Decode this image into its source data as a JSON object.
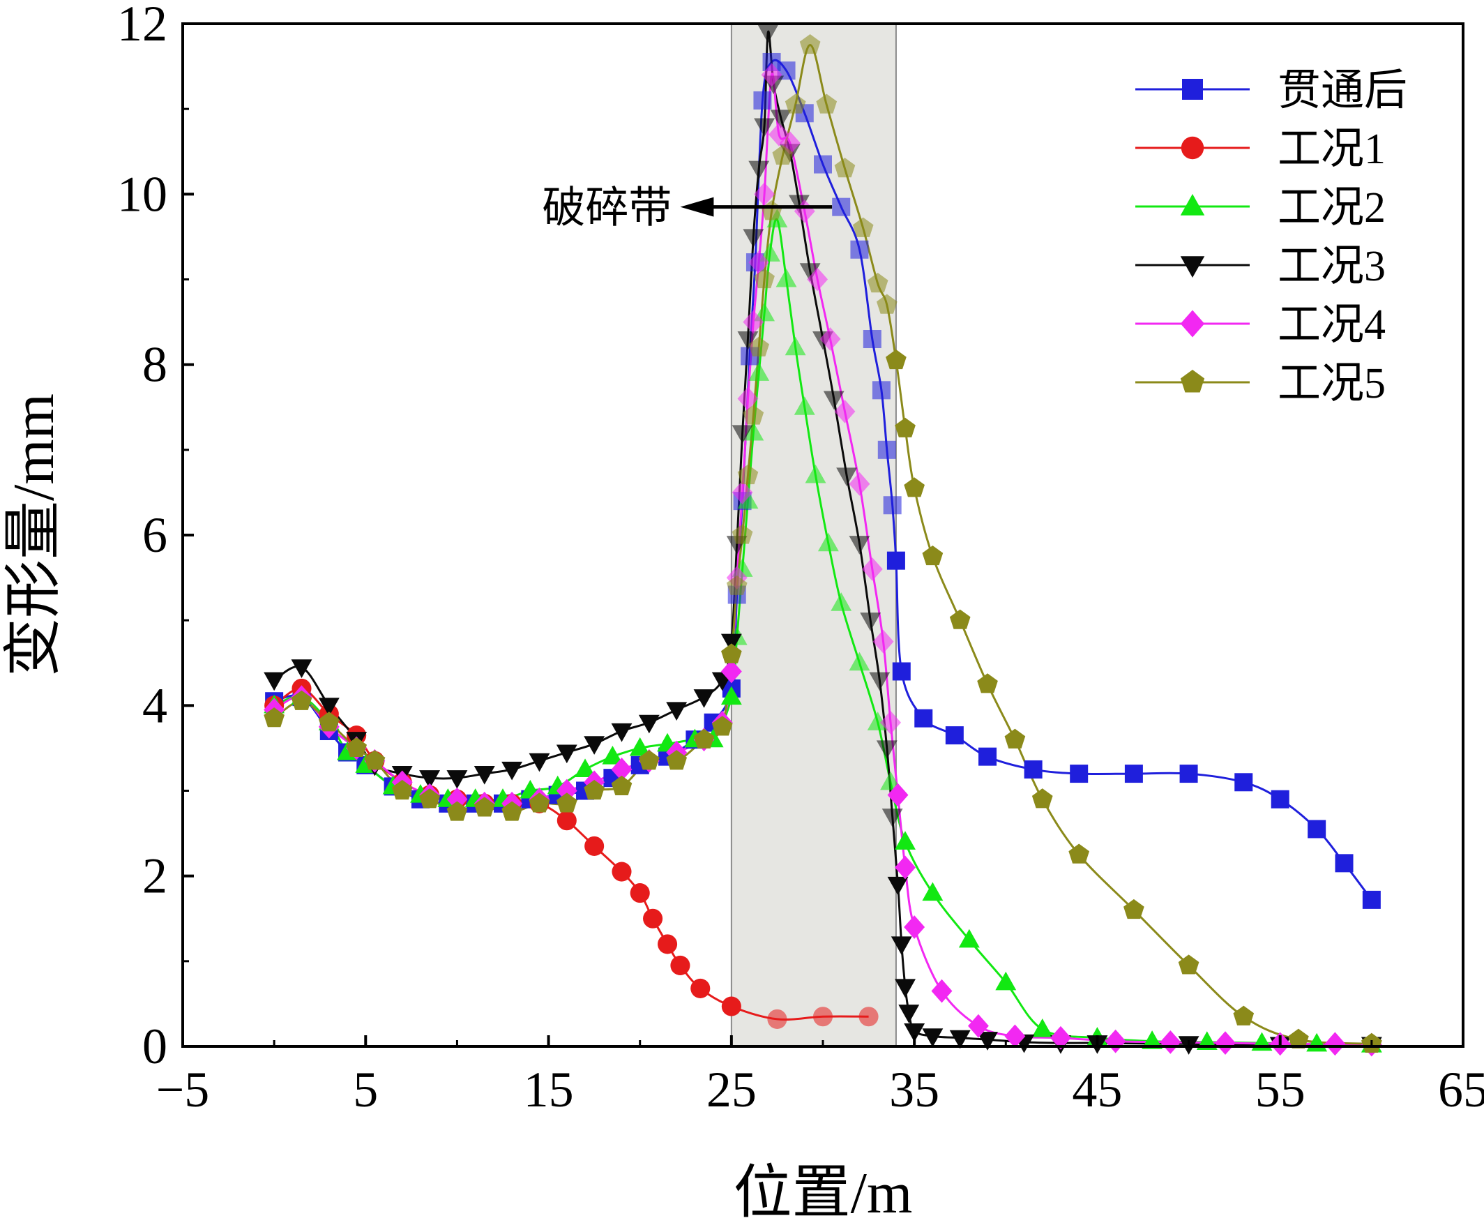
{
  "chart_data": {
    "type": "line",
    "xlabel": "位置/m",
    "ylabel": "变形量/mm",
    "xlim": [
      -5,
      65
    ],
    "ylim": [
      0,
      12
    ],
    "xticks": [
      -5,
      5,
      15,
      25,
      35,
      45,
      55,
      65
    ],
    "xtick_labels": [
      "−5",
      "5",
      "15",
      "25",
      "35",
      "45",
      "55",
      "65"
    ],
    "yticks": [
      0,
      2,
      4,
      6,
      8,
      10,
      12
    ],
    "ytick_labels": [
      "0",
      "2",
      "4",
      "6",
      "8",
      "10",
      "12"
    ],
    "grid": false,
    "legend_position": "top-right",
    "shaded_region": {
      "x": [
        25,
        34
      ],
      "color": "#e6e6e2"
    },
    "annotation": {
      "text": "破碎带",
      "arrow_from": [
        30.5,
        9.85
      ],
      "arrow_to": [
        22.2,
        9.85
      ]
    },
    "series": [
      {
        "name": "贯通后",
        "color": "#1f1fdc",
        "marker": "square",
        "x": [
          0,
          1.5,
          3,
          4,
          5,
          6.5,
          8,
          9.5,
          11,
          12.5,
          14,
          15.5,
          17,
          18.5,
          20,
          21.5,
          23,
          24,
          25,
          25.3,
          25.6,
          26,
          26.3,
          26.7,
          27.2,
          28,
          29,
          30,
          31,
          32,
          32.7,
          33.2,
          33.5,
          33.8,
          34,
          34.3,
          35.5,
          37.2,
          39,
          41.5,
          44,
          47,
          50,
          53,
          55,
          57,
          58.5,
          60
        ],
        "y": [
          4.05,
          4.1,
          3.7,
          3.45,
          3.3,
          3.05,
          2.9,
          2.85,
          2.85,
          2.85,
          2.9,
          2.95,
          3.0,
          3.15,
          3.3,
          3.4,
          3.6,
          3.8,
          4.2,
          5.3,
          6.4,
          8.1,
          9.2,
          11.1,
          11.55,
          11.45,
          10.95,
          10.35,
          9.85,
          9.35,
          8.3,
          7.7,
          7.0,
          6.35,
          5.7,
          4.4,
          3.85,
          3.65,
          3.4,
          3.25,
          3.2,
          3.2,
          3.2,
          3.1,
          2.9,
          2.55,
          2.15,
          1.72
        ]
      },
      {
        "name": "工况1",
        "color": "#e61b1b",
        "marker": "circle",
        "x": [
          0,
          1.5,
          3,
          4.5,
          5.5,
          7,
          8.5,
          10,
          11.5,
          13,
          14.5,
          16,
          17.5,
          19,
          20,
          20.7,
          21.5,
          22.2,
          23.3,
          25,
          27.5,
          30,
          32.5
        ],
        "y": [
          4.0,
          4.2,
          3.9,
          3.65,
          3.35,
          3.1,
          2.95,
          2.9,
          2.85,
          2.85,
          2.85,
          2.65,
          2.35,
          2.05,
          1.8,
          1.5,
          1.2,
          0.95,
          0.68,
          0.47,
          0.32,
          0.35,
          0.35
        ]
      },
      {
        "name": "工况2",
        "color": "#12e812",
        "marker": "triangle-up",
        "x": [
          0,
          1.5,
          3,
          4,
          5,
          6.5,
          8,
          9.5,
          11,
          12.5,
          14,
          15.5,
          17,
          18.5,
          20,
          21.5,
          23,
          24,
          25,
          25.3,
          25.6,
          25.9,
          26.2,
          26.5,
          26.8,
          27.1,
          27.5,
          28,
          28.5,
          29,
          29.6,
          30.3,
          31,
          32,
          33,
          33.7,
          34.5,
          36,
          38,
          40,
          42,
          45,
          48,
          51,
          54,
          57,
          60
        ],
        "y": [
          4.0,
          4.1,
          3.8,
          3.45,
          3.3,
          3.05,
          2.95,
          2.9,
          2.9,
          2.9,
          3.0,
          3.05,
          3.25,
          3.4,
          3.5,
          3.55,
          3.6,
          3.6,
          4.1,
          4.8,
          5.6,
          6.4,
          7.2,
          7.9,
          8.6,
          9.3,
          9.7,
          9.0,
          8.2,
          7.5,
          6.7,
          5.9,
          5.2,
          4.5,
          3.8,
          3.1,
          2.4,
          1.8,
          1.25,
          0.75,
          0.2,
          0.1,
          0.06,
          0.05,
          0.04,
          0.03,
          0.02
        ]
      },
      {
        "name": "工况3",
        "color": "#0a0a0a",
        "marker": "triangle-down",
        "x": [
          0,
          1.5,
          3,
          4.5,
          5.5,
          7,
          8.5,
          10,
          11.5,
          13,
          14.5,
          16,
          17.5,
          19,
          20.5,
          22,
          23.5,
          24.5,
          25,
          25.3,
          25.6,
          25.9,
          26.2,
          26.5,
          26.8,
          27,
          27.3,
          27.7,
          28.2,
          28.7,
          29.3,
          30,
          30.6,
          31.3,
          32,
          32.6,
          33.1,
          33.5,
          33.8,
          34.1,
          34.3,
          34.5,
          34.7,
          35,
          36,
          37.5,
          39,
          41,
          43,
          45,
          50,
          55,
          60
        ],
        "y": [
          4.3,
          4.45,
          4.0,
          3.6,
          3.3,
          3.2,
          3.15,
          3.15,
          3.2,
          3.25,
          3.35,
          3.45,
          3.55,
          3.7,
          3.8,
          3.95,
          4.1,
          4.3,
          4.75,
          5.9,
          7.2,
          8.3,
          9.5,
          10.3,
          10.8,
          11.9,
          11.3,
          10.9,
          10.5,
          9.9,
          9.1,
          8.3,
          7.6,
          6.7,
          5.9,
          5.0,
          4.3,
          3.5,
          2.7,
          1.9,
          1.2,
          0.7,
          0.4,
          0.18,
          0.12,
          0.1,
          0.08,
          0.05,
          0.04,
          0.04,
          0.03,
          0.02,
          0.02
        ]
      },
      {
        "name": "工况4",
        "color": "#f228f2",
        "marker": "diamond",
        "x": [
          0,
          1.5,
          3,
          4.5,
          5.5,
          7,
          8.5,
          10,
          11.5,
          13,
          14.5,
          16,
          17.5,
          19,
          20.5,
          22,
          23.5,
          24.5,
          25,
          25.3,
          25.6,
          25.9,
          26.2,
          26.5,
          26.8,
          27.2,
          27.6,
          28.2,
          29,
          29.7,
          30.4,
          31.2,
          32,
          32.7,
          33.3,
          33.7,
          34.1,
          34.5,
          35,
          36.5,
          38.5,
          40.5,
          43,
          46,
          49,
          52,
          55,
          58,
          60
        ],
        "y": [
          3.95,
          4.1,
          3.75,
          3.5,
          3.35,
          3.1,
          2.95,
          2.9,
          2.85,
          2.85,
          2.9,
          3.0,
          3.1,
          3.25,
          3.35,
          3.45,
          3.6,
          3.8,
          4.4,
          5.5,
          6.5,
          7.6,
          8.5,
          9.2,
          10.0,
          11.4,
          10.7,
          10.6,
          9.8,
          9.0,
          8.3,
          7.45,
          6.6,
          5.6,
          4.75,
          3.8,
          2.95,
          2.1,
          1.4,
          0.65,
          0.24,
          0.12,
          0.1,
          0.06,
          0.05,
          0.04,
          0.03,
          0.03,
          0.02
        ]
      },
      {
        "name": "工况5",
        "color": "#8b8a1a",
        "marker": "pentagon",
        "x": [
          0,
          1.5,
          3,
          4.5,
          5.5,
          7,
          8.5,
          10,
          11.5,
          13,
          14.5,
          16,
          17.5,
          19,
          20.5,
          22,
          23.5,
          24.5,
          25,
          25.3,
          25.6,
          25.9,
          26.2,
          26.5,
          26.8,
          27.2,
          27.8,
          28.5,
          29.3,
          30.2,
          31.2,
          32.2,
          33,
          33.5,
          34,
          34.5,
          35,
          36,
          37.5,
          39,
          40.5,
          42,
          44,
          47,
          50,
          53,
          56,
          60
        ],
        "y": [
          3.85,
          4.05,
          3.8,
          3.5,
          3.35,
          3.0,
          2.9,
          2.75,
          2.8,
          2.75,
          2.85,
          2.85,
          3.0,
          3.05,
          3.35,
          3.35,
          3.6,
          3.75,
          4.6,
          5.4,
          6.0,
          6.7,
          7.4,
          8.2,
          9.0,
          9.8,
          10.45,
          11.05,
          11.75,
          11.05,
          10.3,
          9.6,
          8.95,
          8.7,
          8.05,
          7.25,
          6.55,
          5.75,
          5.0,
          4.25,
          3.6,
          2.9,
          2.25,
          1.6,
          0.95,
          0.35,
          0.08,
          0.03
        ]
      }
    ]
  }
}
